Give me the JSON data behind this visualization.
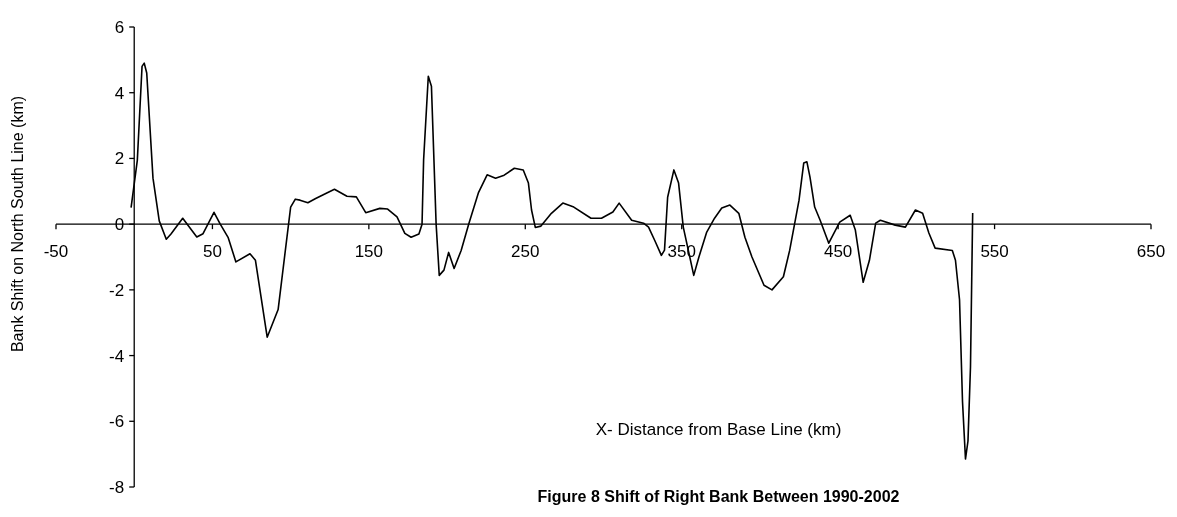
{
  "chart_data": {
    "type": "line",
    "title": "Figure  8 Shift of Right Bank Between 1990-2002",
    "xlabel": "X- Distance from Base Line (km)",
    "ylabel": "Bank Shift on North South Line (km)",
    "xlim": [
      -50,
      650
    ],
    "xticks": [
      -50,
      50,
      150,
      250,
      350,
      450,
      550,
      650
    ],
    "ylim": [
      -8,
      6
    ],
    "yticks": [
      -8,
      -6,
      -4,
      -2,
      0,
      2,
      4,
      6
    ],
    "series": [
      {
        "color": "#000000",
        "x": [
          -2,
          2,
          5,
          6.4,
          8,
          12,
          16,
          20.5,
          23.5,
          31,
          40,
          44,
          51,
          55,
          60,
          65,
          74,
          77.5,
          85,
          92,
          100,
          103,
          106,
          111,
          116,
          128,
          136,
          142,
          148,
          157,
          162,
          168,
          173,
          177,
          182,
          184,
          185,
          188,
          190,
          193,
          195,
          198,
          201,
          204.5,
          209,
          214,
          220,
          225.6,
          231,
          236.5,
          243,
          248.7,
          252,
          254,
          256.4,
          260,
          266.7,
          274,
          281,
          292,
          298.7,
          306,
          310,
          318,
          325.6,
          328.8,
          332.7,
          337,
          339,
          341,
          345,
          348,
          351,
          357.7,
          361,
          366,
          371,
          375.6,
          380.8,
          386.5,
          390.4,
          394.9,
          402.6,
          407.7,
          415,
          419,
          425,
          428,
          430,
          432,
          435,
          438.5,
          444,
          451,
          457.7,
          461,
          466,
          470,
          474,
          477,
          486.5,
          493,
          499.4,
          504,
          508,
          512,
          523,
          525,
          527.6,
          529.5,
          531.4,
          533,
          534.6,
          536
        ],
        "values": [
          0.5,
          1.95,
          4.8,
          4.9,
          4.6,
          1.4,
          0.1,
          -0.46,
          -0.3,
          0.18,
          -0.39,
          -0.29,
          0.36,
          0.0,
          -0.4,
          -1.15,
          -0.9,
          -1.1,
          -3.44,
          -2.6,
          0.52,
          0.76,
          0.73,
          0.65,
          0.78,
          1.06,
          0.85,
          0.83,
          0.35,
          0.48,
          0.46,
          0.22,
          -0.28,
          -0.4,
          -0.3,
          0.0,
          1.95,
          4.5,
          4.2,
          0.0,
          -1.56,
          -1.4,
          -0.86,
          -1.35,
          -0.8,
          0.03,
          0.95,
          1.5,
          1.4,
          1.49,
          1.7,
          1.65,
          1.25,
          0.43,
          -0.1,
          -0.06,
          0.33,
          0.64,
          0.52,
          0.18,
          0.18,
          0.37,
          0.64,
          0.12,
          0.03,
          -0.09,
          -0.49,
          -0.95,
          -0.79,
          0.82,
          1.65,
          1.25,
          -0.09,
          -1.56,
          -1.0,
          -0.24,
          0.18,
          0.49,
          0.58,
          0.33,
          -0.4,
          -1.0,
          -1.86,
          -2.0,
          -1.6,
          -0.8,
          0.73,
          1.86,
          1.9,
          1.43,
          0.52,
          0.12,
          -0.58,
          0.06,
          0.27,
          -0.18,
          -1.77,
          -1.1,
          0.03,
          0.12,
          -0.03,
          -0.09,
          0.43,
          0.33,
          -0.27,
          -0.73,
          -0.8,
          -1.1,
          -2.3,
          -5.4,
          -7.15,
          -6.6,
          -4.35,
          0.34
        ]
      }
    ]
  }
}
